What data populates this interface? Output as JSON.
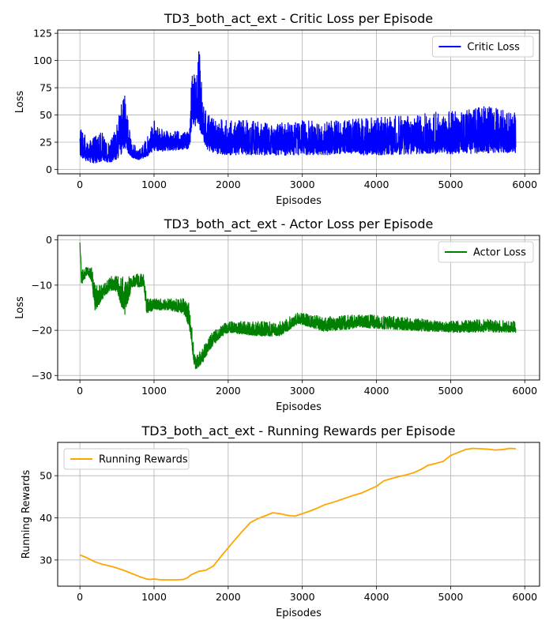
{
  "chart_data": [
    {
      "type": "line",
      "title": "TD3_both_act_ext - Critic Loss per Episode",
      "xlabel": "Episodes",
      "ylabel": "Loss",
      "xlim": [
        -300,
        6200
      ],
      "ylim": [
        -4,
        128
      ],
      "xticks": [
        0,
        1000,
        2000,
        3000,
        4000,
        5000,
        6000
      ],
      "yticks": [
        0,
        25,
        50,
        75,
        100,
        125
      ],
      "grid": true,
      "legend": "top-right",
      "series": [
        {
          "name": "Critic Loss",
          "color": "#0000ff",
          "noisy": true,
          "x_range": [
            0,
            5880
          ],
          "envelope": [
            {
              "x": 0,
              "low": 5,
              "high": 46
            },
            {
              "x": 100,
              "low": 3,
              "high": 25
            },
            {
              "x": 200,
              "low": 1,
              "high": 30
            },
            {
              "x": 300,
              "low": 2,
              "high": 35
            },
            {
              "x": 400,
              "low": 1,
              "high": 25
            },
            {
              "x": 500,
              "low": 3,
              "high": 42
            },
            {
              "x": 560,
              "low": 5,
              "high": 60
            },
            {
              "x": 600,
              "low": 8,
              "high": 72
            },
            {
              "x": 650,
              "low": 8,
              "high": 45
            },
            {
              "x": 700,
              "low": 8,
              "high": 25
            },
            {
              "x": 800,
              "low": 7,
              "high": 18
            },
            {
              "x": 900,
              "low": 8,
              "high": 28
            },
            {
              "x": 1000,
              "low": 12,
              "high": 45
            },
            {
              "x": 1100,
              "low": 12,
              "high": 38
            },
            {
              "x": 1200,
              "low": 14,
              "high": 35
            },
            {
              "x": 1300,
              "low": 14,
              "high": 35
            },
            {
              "x": 1400,
              "low": 15,
              "high": 35
            },
            {
              "x": 1480,
              "low": 15,
              "high": 38
            },
            {
              "x": 1510,
              "low": 30,
              "high": 92
            },
            {
              "x": 1560,
              "low": 30,
              "high": 85
            },
            {
              "x": 1600,
              "low": 25,
              "high": 121
            },
            {
              "x": 1650,
              "low": 20,
              "high": 70
            },
            {
              "x": 1700,
              "low": 12,
              "high": 55
            },
            {
              "x": 1800,
              "low": 8,
              "high": 48
            },
            {
              "x": 2000,
              "low": 7,
              "high": 45
            },
            {
              "x": 2300,
              "low": 7,
              "high": 45
            },
            {
              "x": 2600,
              "low": 7,
              "high": 42
            },
            {
              "x": 3000,
              "low": 7,
              "high": 45
            },
            {
              "x": 3500,
              "low": 7,
              "high": 45
            },
            {
              "x": 4000,
              "low": 6,
              "high": 48
            },
            {
              "x": 4500,
              "low": 7,
              "high": 50
            },
            {
              "x": 5000,
              "low": 6,
              "high": 55
            },
            {
              "x": 5500,
              "low": 6,
              "high": 58
            },
            {
              "x": 5880,
              "low": 8,
              "high": 52
            }
          ]
        }
      ]
    },
    {
      "type": "line",
      "title": "TD3_both_act_ext - Actor Loss per Episode",
      "xlabel": "Episodes",
      "ylabel": "Loss",
      "xlim": [
        -300,
        6200
      ],
      "ylim": [
        -31,
        1
      ],
      "xticks": [
        0,
        1000,
        2000,
        3000,
        4000,
        5000,
        6000
      ],
      "yticks": [
        0,
        -10,
        -20,
        -30
      ],
      "grid": true,
      "legend": "top-right",
      "series": [
        {
          "name": "Actor Loss",
          "color": "#008000",
          "noisy": true,
          "x_range": [
            0,
            5880
          ],
          "envelope": [
            {
              "x": 0,
              "low": -1,
              "high": 0
            },
            {
              "x": 20,
              "low": -11,
              "high": -6
            },
            {
              "x": 100,
              "low": -8,
              "high": -6
            },
            {
              "x": 160,
              "low": -10,
              "high": -6
            },
            {
              "x": 200,
              "low": -17,
              "high": -10
            },
            {
              "x": 300,
              "low": -14,
              "high": -10
            },
            {
              "x": 400,
              "low": -12,
              "high": -8
            },
            {
              "x": 500,
              "low": -12,
              "high": -8
            },
            {
              "x": 600,
              "low": -19,
              "high": -8
            },
            {
              "x": 700,
              "low": -11,
              "high": -8
            },
            {
              "x": 860,
              "low": -11,
              "high": -7
            },
            {
              "x": 900,
              "low": -17,
              "high": -13
            },
            {
              "x": 1000,
              "low": -16,
              "high": -13
            },
            {
              "x": 1200,
              "low": -16,
              "high": -13
            },
            {
              "x": 1400,
              "low": -17,
              "high": -13
            },
            {
              "x": 1480,
              "low": -21,
              "high": -14
            },
            {
              "x": 1550,
              "low": -29.5,
              "high": -26
            },
            {
              "x": 1650,
              "low": -28,
              "high": -24
            },
            {
              "x": 1750,
              "low": -25,
              "high": -21
            },
            {
              "x": 1900,
              "low": -22,
              "high": -19
            },
            {
              "x": 2000,
              "low": -21,
              "high": -18
            },
            {
              "x": 2400,
              "low": -22,
              "high": -18
            },
            {
              "x": 2700,
              "low": -22,
              "high": -18
            },
            {
              "x": 2950,
              "low": -19,
              "high": -16
            },
            {
              "x": 3300,
              "low": -21,
              "high": -17
            },
            {
              "x": 3800,
              "low": -20,
              "high": -16.5
            },
            {
              "x": 4300,
              "low": -20.5,
              "high": -17
            },
            {
              "x": 5000,
              "low": -21,
              "high": -18
            },
            {
              "x": 5500,
              "low": -21,
              "high": -17.5
            },
            {
              "x": 5880,
              "low": -21,
              "high": -18
            }
          ]
        }
      ]
    },
    {
      "type": "line",
      "title": "TD3_both_act_ext - Running Rewards per Episode",
      "xlabel": "Episodes",
      "ylabel": "Running Rewards",
      "xlim": [
        -300,
        6200
      ],
      "ylim": [
        23.8,
        57.9
      ],
      "xticks": [
        0,
        1000,
        2000,
        3000,
        4000,
        5000,
        6000
      ],
      "yticks": [
        30,
        40,
        50
      ],
      "grid": true,
      "legend": "top-left",
      "series": [
        {
          "name": "Running Rewards",
          "color": "#ffa500",
          "noisy": false,
          "points": [
            [
              0,
              31.2
            ],
            [
              100,
              30.5
            ],
            [
              200,
              29.6
            ],
            [
              300,
              29.0
            ],
            [
              400,
              28.6
            ],
            [
              500,
              28.1
            ],
            [
              600,
              27.5
            ],
            [
              700,
              26.8
            ],
            [
              800,
              26.1
            ],
            [
              900,
              25.5
            ],
            [
              950,
              25.4
            ],
            [
              1000,
              25.5
            ],
            [
              1100,
              25.3
            ],
            [
              1200,
              25.3
            ],
            [
              1300,
              25.3
            ],
            [
              1400,
              25.4
            ],
            [
              1450,
              25.8
            ],
            [
              1500,
              26.5
            ],
            [
              1600,
              27.3
            ],
            [
              1700,
              27.6
            ],
            [
              1800,
              28.6
            ],
            [
              1900,
              30.8
            ],
            [
              2000,
              32.9
            ],
            [
              2100,
              35.0
            ],
            [
              2200,
              37.0
            ],
            [
              2300,
              38.9
            ],
            [
              2400,
              39.8
            ],
            [
              2500,
              40.5
            ],
            [
              2600,
              41.2
            ],
            [
              2700,
              41.0
            ],
            [
              2800,
              40.6
            ],
            [
              2900,
              40.4
            ],
            [
              3000,
              41.0
            ],
            [
              3100,
              41.6
            ],
            [
              3200,
              42.3
            ],
            [
              3300,
              43.1
            ],
            [
              3400,
              43.6
            ],
            [
              3500,
              44.2
            ],
            [
              3600,
              44.8
            ],
            [
              3700,
              45.4
            ],
            [
              3800,
              45.9
            ],
            [
              3900,
              46.7
            ],
            [
              4000,
              47.5
            ],
            [
              4100,
              48.8
            ],
            [
              4200,
              49.3
            ],
            [
              4300,
              49.8
            ],
            [
              4400,
              50.2
            ],
            [
              4500,
              50.7
            ],
            [
              4600,
              51.5
            ],
            [
              4700,
              52.5
            ],
            [
              4800,
              52.9
            ],
            [
              4900,
              53.4
            ],
            [
              5000,
              54.8
            ],
            [
              5100,
              55.5
            ],
            [
              5200,
              56.2
            ],
            [
              5300,
              56.5
            ],
            [
              5400,
              56.4
            ],
            [
              5500,
              56.3
            ],
            [
              5600,
              56.1
            ],
            [
              5700,
              56.2
            ],
            [
              5800,
              56.5
            ],
            [
              5880,
              56.4
            ]
          ]
        }
      ]
    }
  ]
}
